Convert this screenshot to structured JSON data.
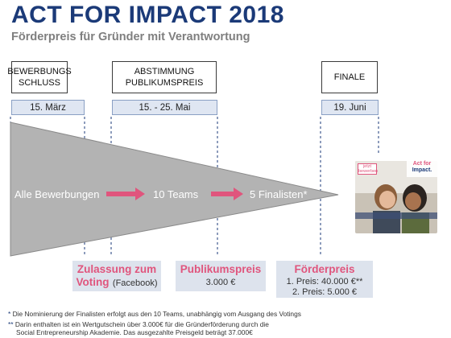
{
  "header": {
    "title": "ACT FOR IMPACT 2018",
    "subtitle": "Förderpreis für Gründer mit Verantwortung"
  },
  "phases": [
    {
      "label_line1": "BEWERBUNGS",
      "label_line2": "SCHLUSS",
      "date": "15. März"
    },
    {
      "label_line1": "ABSTIMMUNG",
      "label_line2": "PUBLIKUMSPREIS",
      "date": "15. - 25. Mai"
    },
    {
      "label_line1": "FINALE",
      "label_line2": "",
      "date": "19. Juni"
    }
  ],
  "flow": {
    "stage1": "Alle Bewerbungen",
    "stage2": "10 Teams",
    "stage3": "5 Finalisten*"
  },
  "summary": [
    {
      "head_line1": "Zulassung zum",
      "head_line2": "Voting",
      "sub": "(Facebook)"
    },
    {
      "head": "Publikumspreis",
      "sub": "3.000 €"
    },
    {
      "head": "Förderpreis",
      "line1": "1. Preis: 40.000 €**",
      "line2": "2. Preis: 5.000 €"
    }
  ],
  "promo": {
    "tag_line1": "jetzt",
    "tag_line2": "bewerben",
    "logo_line1": "Act for",
    "logo_line2": "Impact."
  },
  "footnotes": {
    "note1_mark": "*",
    "note1": "Die Nominierung der Finalisten erfolgt aus den 10 Teams, unabhängig vom Ausgang des Votings",
    "note2_mark": "**",
    "note2_line1": "Darin enthalten ist ein Wertgutschein über 3.000€ für die Gründerförderung durch die",
    "note2_line2": "Social Entrepreneurship Akademie. Das ausgezahlte Preisgeld beträgt 37.000€"
  },
  "colors": {
    "title": "#1b3a78",
    "accent": "#e0557d",
    "funnel": "#b3b3b3",
    "date_fill": "#dfe6f2",
    "summary_fill": "#dde3ed"
  }
}
